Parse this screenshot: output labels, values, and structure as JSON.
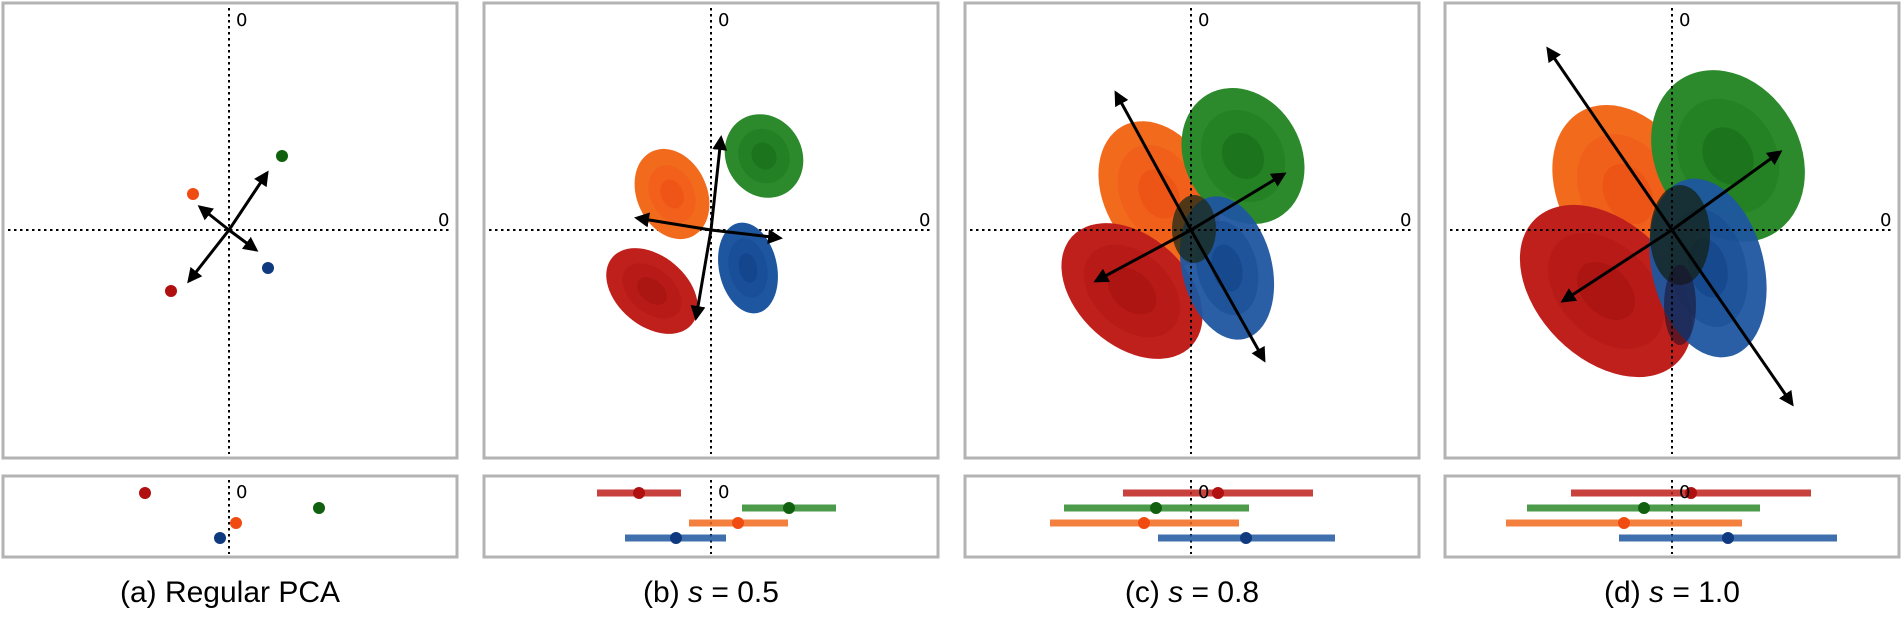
{
  "panels": [
    {
      "caption_prefix": "(a) Regular PCA",
      "caption_italic": "",
      "caption_suffix": ""
    },
    {
      "caption_prefix": "(b) ",
      "caption_italic": "s",
      "caption_suffix": " = 0.5"
    },
    {
      "caption_prefix": "(c) ",
      "caption_italic": "s",
      "caption_suffix": " = 0.8"
    },
    {
      "caption_prefix": "(d) ",
      "caption_italic": "s",
      "caption_suffix": " = 1.0"
    }
  ],
  "axis_zero_label": "0",
  "colors": {
    "red": "#c0201c",
    "orange": "#f26b1d",
    "green": "#2c8a2c",
    "blue": "#1f56a0",
    "red_dot": "#b01010",
    "orange_dot": "#f04b10",
    "green_dot": "#106010",
    "blue_dot": "#103a80",
    "frame": "#b3b3b3"
  }
}
